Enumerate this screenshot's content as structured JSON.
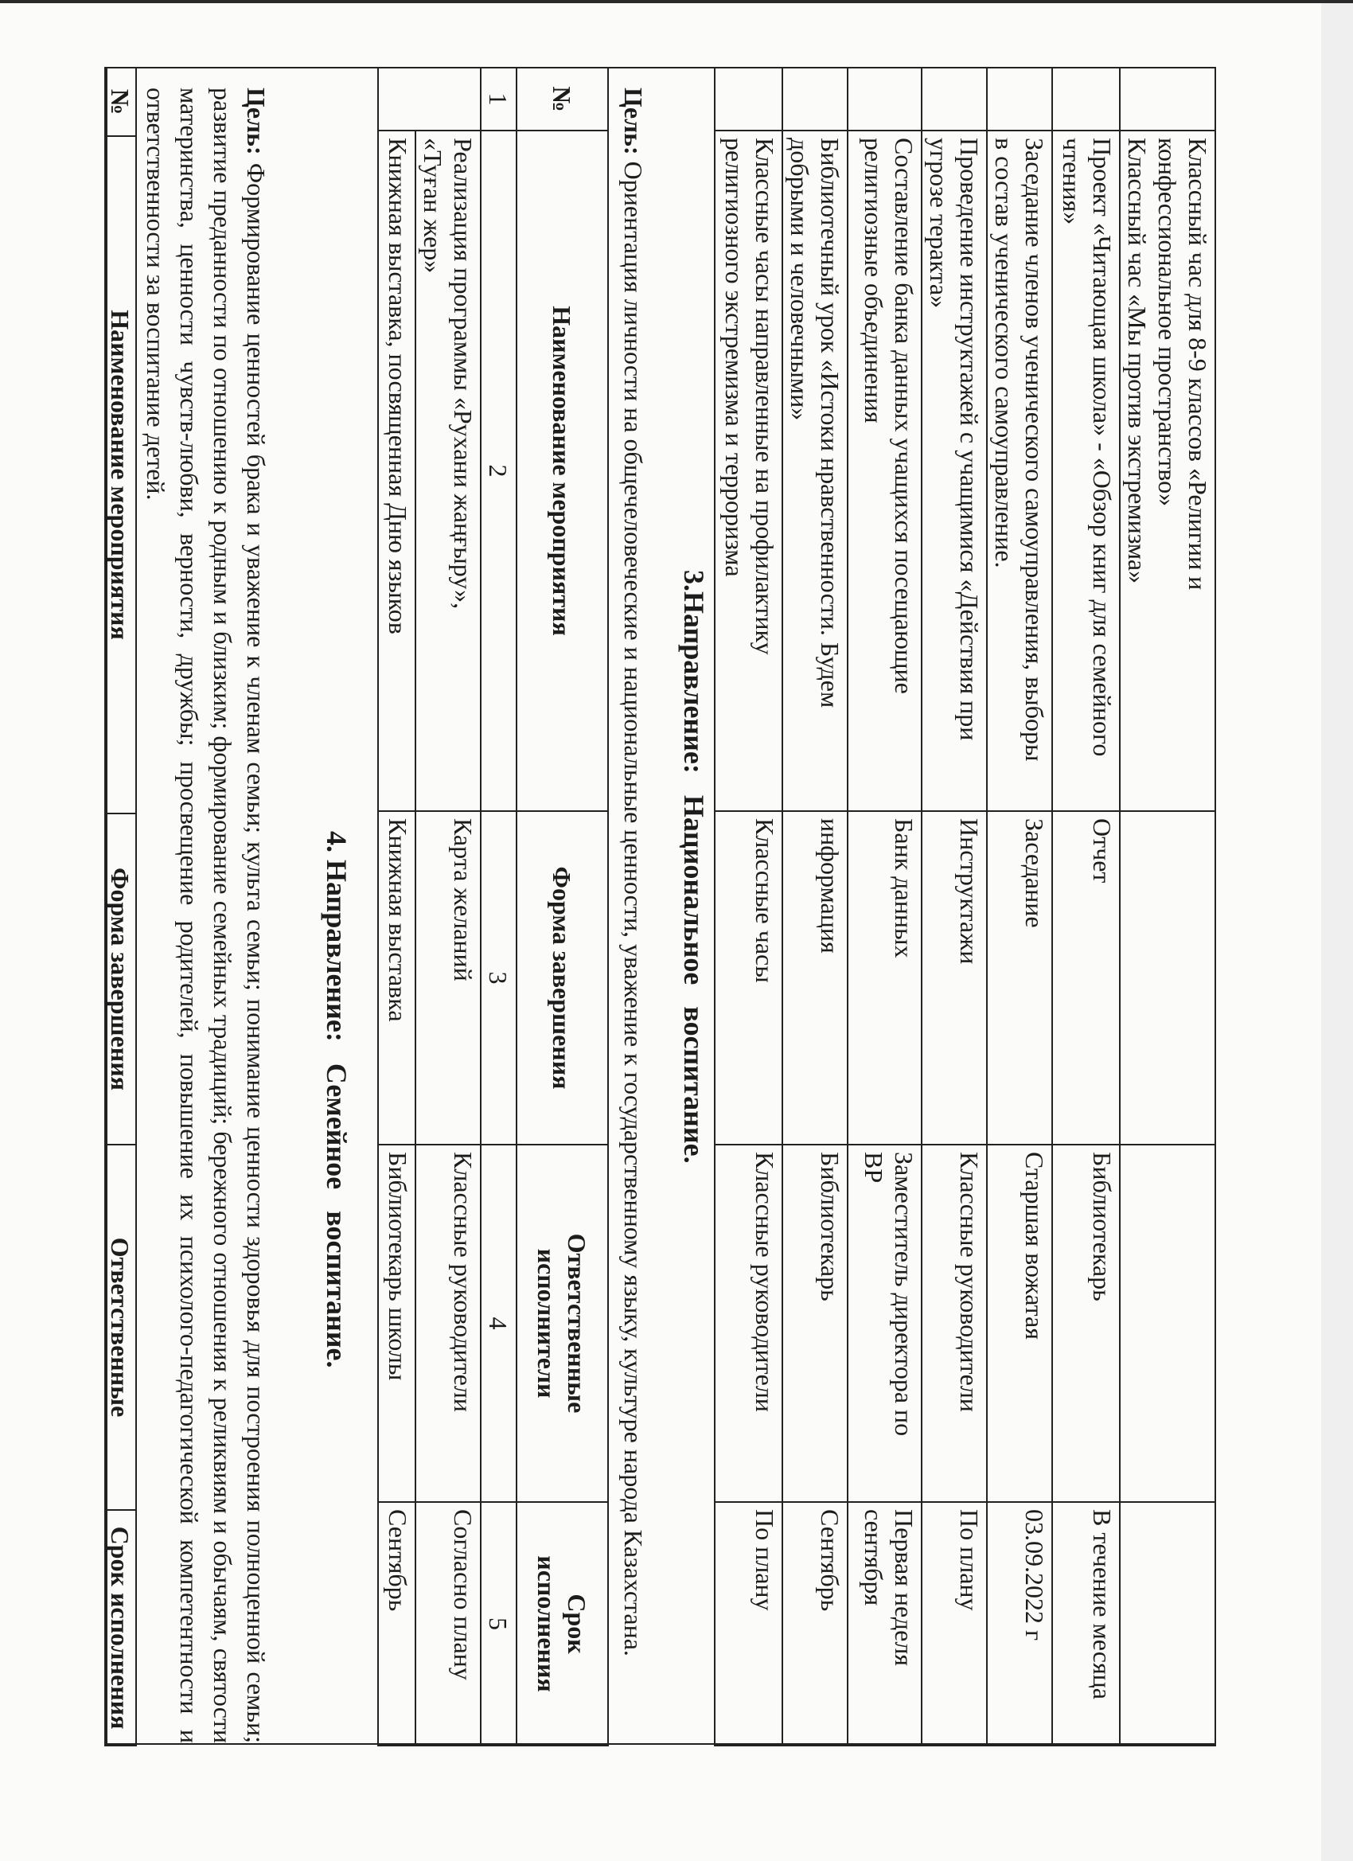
{
  "section2_table": {
    "rows": [
      {
        "name": "Классный час для 8-9 классов «Религии и\nконфессиональное пространство»\nКлассный час «Мы против экстремизма»",
        "form": "",
        "responsible": "",
        "deadline": ""
      },
      {
        "name": "Проект «Читающая школа» - «Обзор книг для семейного\nчтения»",
        "form": "Отчет",
        "responsible": "Библиотекарь",
        "deadline": "В течение  месяца"
      },
      {
        "name": "Заседание членов ученического самоуправления, выборы\nв состав ученического самоуправление.",
        "form": "Заседание",
        "responsible": "Старшая вожатая",
        "deadline": "03.09.2022 г"
      },
      {
        "name": "Проведение инструктажей с учащимися «Действия при\nугрозе теракта»",
        "form": "Инструктажи",
        "responsible": "Классные руководители",
        "deadline": "По плану"
      },
      {
        "name": "Составление банка данных учащихся посещающие\nрелигиозные объединения",
        "form": "Банк данных",
        "responsible": "Заместитель директора по\nВР",
        "deadline": "Первая неделя\nсентября"
      },
      {
        "name": "Библиотечный урок «Истоки нравственности. Будем\nдобрыми и человечными»",
        "form": "информация",
        "responsible": "Библиотекарь",
        "deadline": "Сентябрь"
      },
      {
        "name": "Классные часы направленные на профилактику\nрелигиозного экстремизма и терроризма",
        "form": "Классные часы",
        "responsible": "Классные руководители",
        "deadline": "По плану"
      }
    ]
  },
  "section3": {
    "title": "3.Направление:   Национальное   воспитание.",
    "goal_label": "Цель:",
    "goal_text": " Ориентация личности на общечеловеческие и национальные ценности, уважение к государственному языку, культуре народа Казахстана.",
    "headers": [
      "№",
      "Наименование мероприятия",
      "Форма завершения",
      "Ответственные\nисполнители",
      "Срок\nисполнения"
    ],
    "column_numbers": [
      "1",
      "2",
      "3",
      "4",
      "5"
    ],
    "rows": [
      {
        "name": "Реализация программы «Рухани жаңғыру»,\n«Туған жер»",
        "form": "Карта желаний",
        "responsible": "Классные руководители",
        "deadline": "Согласно плану"
      },
      {
        "name": "Книжная выставка, посвященная Дню языков",
        "form": "Книжная выставка",
        "responsible": "Библиотекарь школы",
        "deadline": "Сентябрь"
      }
    ]
  },
  "section4": {
    "title": "4. Направление:   Семейное   воспитание.",
    "goal_label": "Цель:",
    "goal_text": " Формирование ценностей брака и уважение к членам семьи; культа семьи; понимание ценности здоровья для построения полноценной семьи; развитие преданности по отношению к родным и близким; формирование семейных традиций;  бережного отношения к реликвиям и обычаям, святости материнства, ценности чувств-любви, верности, дружбы; просвещение родителей, повышение их психолого-педагогической компетентности и ответственности за воспитание детей.",
    "headers": [
      "№",
      "Наименование мероприятия",
      "Форма завершения",
      "Ответственные",
      "Срок исполнения"
    ]
  }
}
